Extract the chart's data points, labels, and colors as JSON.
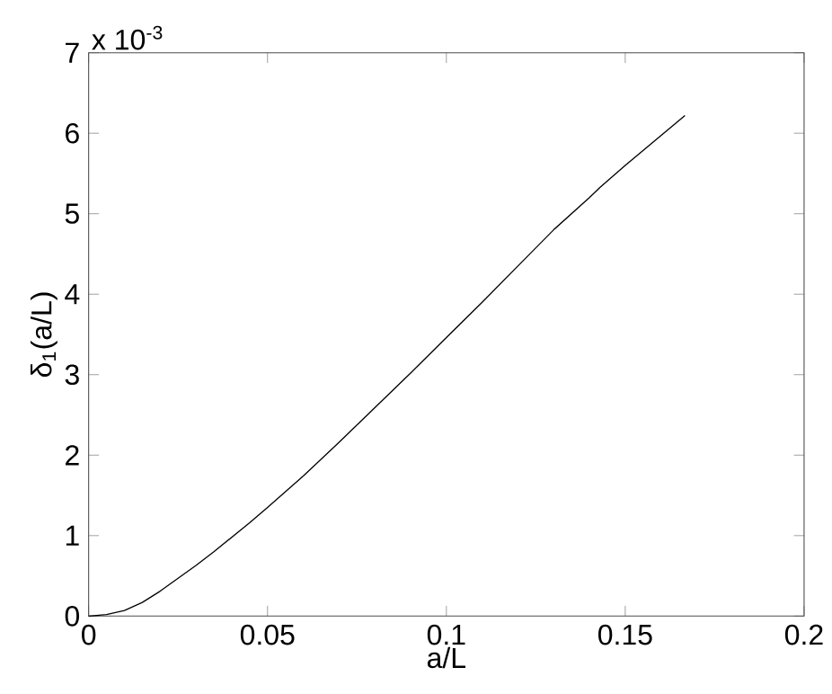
{
  "chart_data": {
    "type": "line",
    "xlabel": "a/L",
    "ylabel": "δ$_{1}$(a/L)",
    "annotations": [
      "x 10$^{-3}$"
    ],
    "x": [
      0,
      0.005,
      0.01,
      0.015,
      0.02,
      0.025,
      0.03,
      0.035,
      0.04,
      0.045,
      0.05,
      0.06,
      0.07,
      0.08,
      0.09,
      0.1,
      0.11,
      0.12,
      0.13,
      0.14,
      0.143,
      0.15,
      0.1667
    ],
    "series": [
      {
        "color": "#000000",
        "values": [
          0,
          0.02,
          0.07,
          0.17,
          0.31,
          0.47,
          0.63,
          0.8,
          0.98,
          1.16,
          1.35,
          1.74,
          2.16,
          2.59,
          3.02,
          3.46,
          3.9,
          4.35,
          4.8,
          5.2,
          5.33,
          5.6,
          6.22
        ]
      }
    ],
    "xlim": [
      0,
      0.2
    ],
    "xticks": [
      0,
      0.05,
      0.1,
      0.15,
      0.2
    ],
    "ylim": [
      0,
      7
    ],
    "yticks": [
      0,
      1,
      2,
      3,
      4,
      5,
      6,
      7
    ],
    "grid": false,
    "marker": "none",
    "line_style": "solid"
  }
}
